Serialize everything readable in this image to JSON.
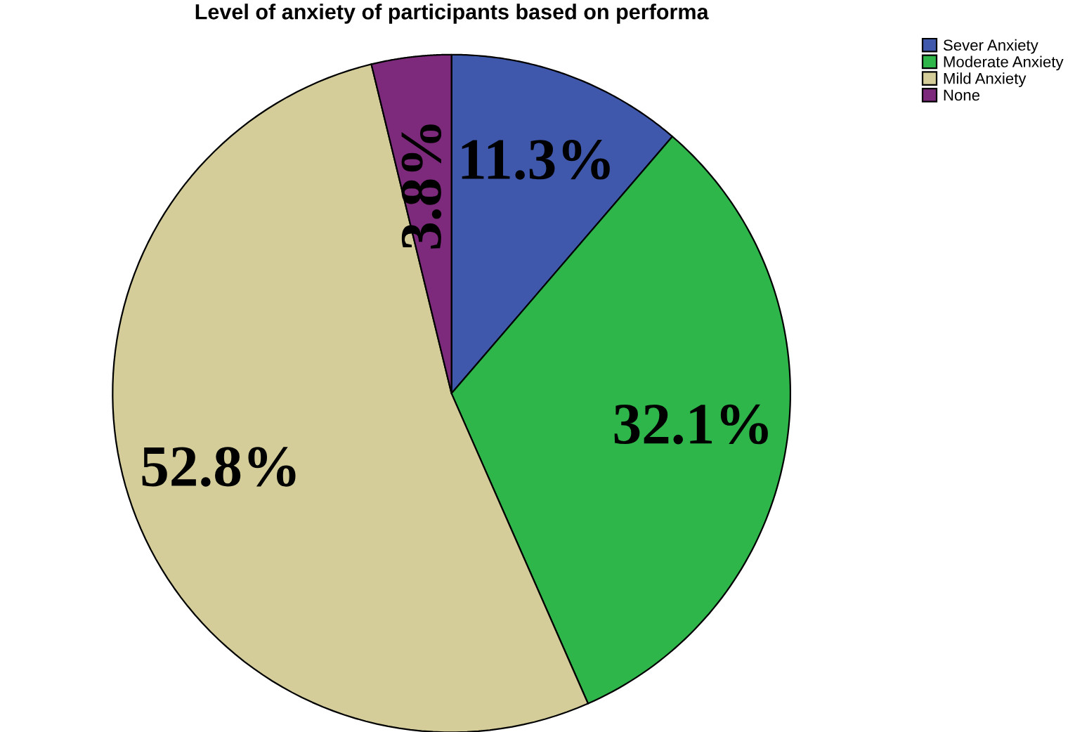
{
  "chart_data": {
    "type": "pie",
    "title": "Level of anxiety of participants based on performa",
    "categories": [
      "Sever Anxiety",
      "Moderate Anxiety",
      "Mild Anxiety",
      "None"
    ],
    "values": [
      11.3,
      32.1,
      52.8,
      3.8
    ],
    "colors": [
      "#3f58ac",
      "#2eb64b",
      "#d4cd99",
      "#7d2a7c"
    ],
    "value_labels": [
      "11.3%",
      "32.1%",
      "52.8%",
      "3.8%"
    ],
    "legend": "top right"
  }
}
